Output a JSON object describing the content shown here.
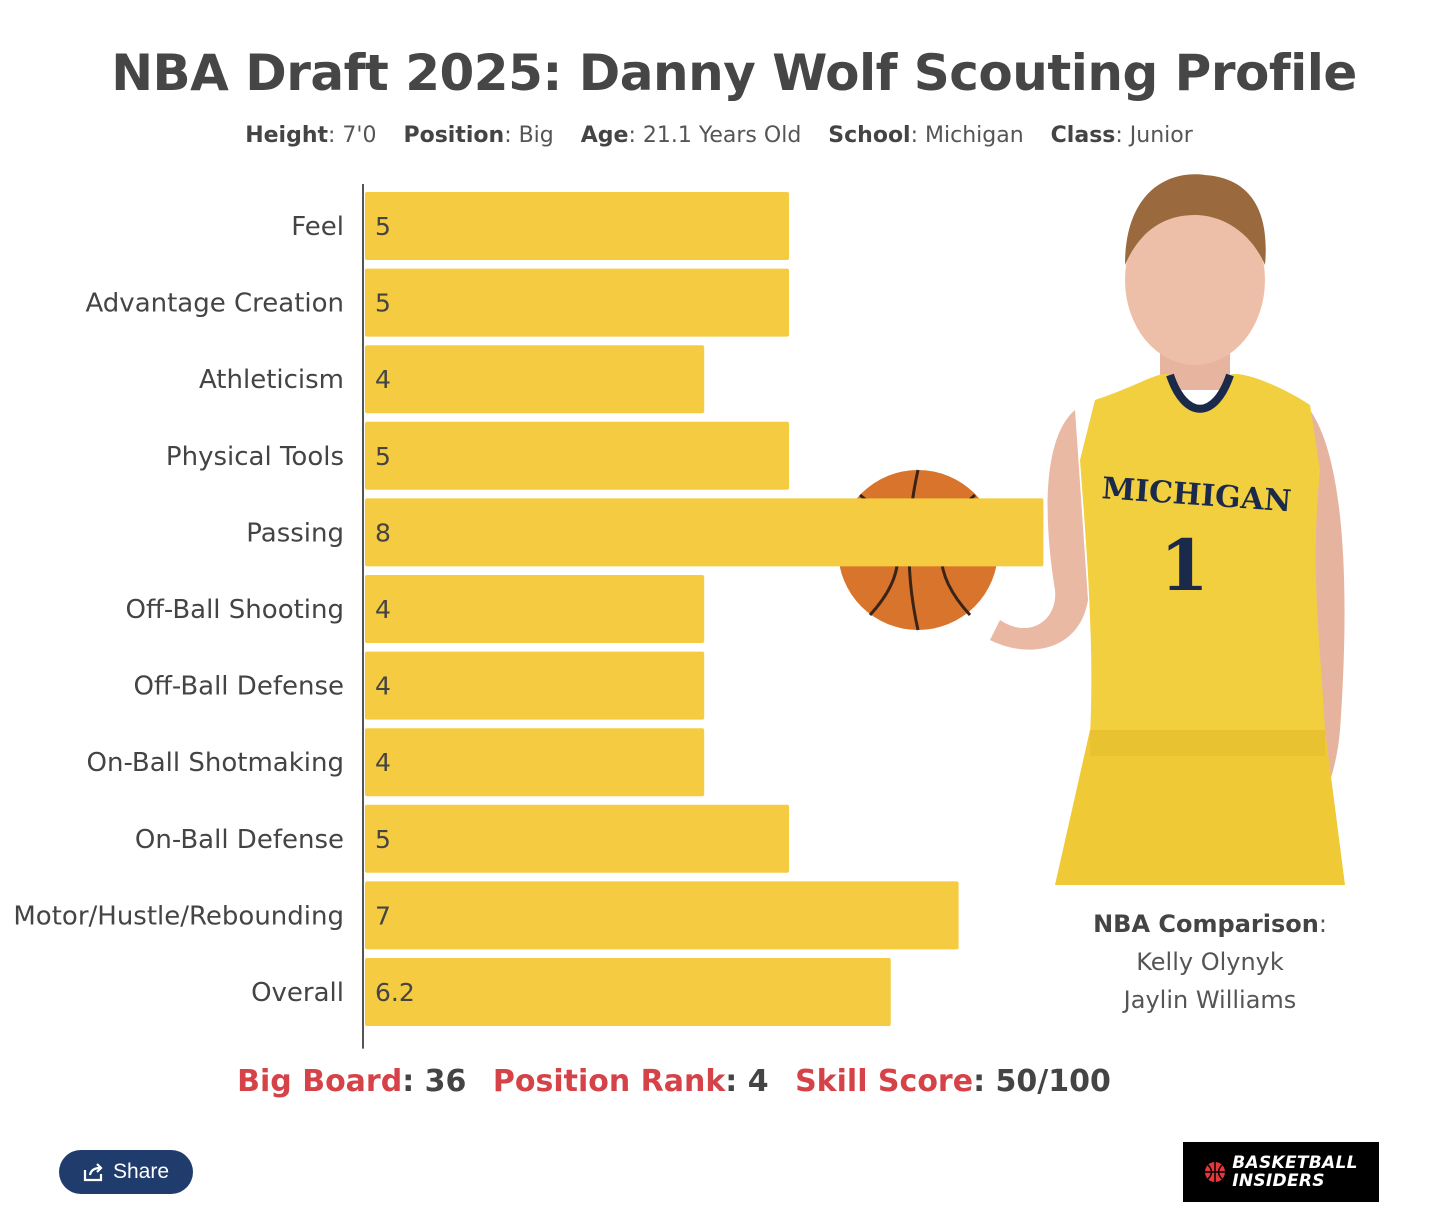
{
  "title": "NBA Draft 2025: Danny Wolf Scouting Profile",
  "meta": [
    {
      "key": "Height",
      "value": ": 7'0"
    },
    {
      "key": "Position",
      "value": ": Big"
    },
    {
      "key": "Age",
      "value": ": 21.1 Years Old"
    },
    {
      "key": "School",
      "value": ": Michigan"
    },
    {
      "key": "Class",
      "value": ": Junior"
    }
  ],
  "chart_data": {
    "type": "bar",
    "orientation": "horizontal",
    "categories": [
      "Feel",
      "Advantage Creation",
      "Athleticism",
      "Physical Tools",
      "Passing",
      "Off-Ball Shooting",
      "Off-Ball Defense",
      "On-Ball Shotmaking",
      "On-Ball Defense",
      "Motor/Hustle/Rebounding",
      "Overall"
    ],
    "values": [
      5,
      5,
      4,
      5,
      8,
      4,
      4,
      4,
      5,
      7,
      6.2
    ],
    "data_labels": [
      "5",
      "5",
      "4",
      "5",
      "8",
      "4",
      "4",
      "4",
      "5",
      "7",
      "6.2"
    ],
    "xlim": [
      0,
      10
    ],
    "grid": false,
    "bar_color": "#f5cb42"
  },
  "comparison": {
    "label": "NBA Comparison",
    "suffix": ":",
    "players": [
      "Kelly Olynyk",
      "Jaylin Williams"
    ]
  },
  "ranks": [
    {
      "key": "Big Board",
      "value": ": 36"
    },
    {
      "key": "Position Rank",
      "value": ": 4"
    },
    {
      "key": "Skill Score",
      "value": ": 50/100"
    }
  ],
  "share": {
    "label": "Share",
    "icon": "share-icon"
  },
  "logo": {
    "line1": "BASKETBALL",
    "line2": "INSIDERS"
  },
  "colors": {
    "accent_red": "#d54348",
    "bar": "#f5cb42",
    "share_bg": "#1f3c6d",
    "jersey": "#f2cf3e",
    "jersey_trim": "#1b2a4a"
  }
}
